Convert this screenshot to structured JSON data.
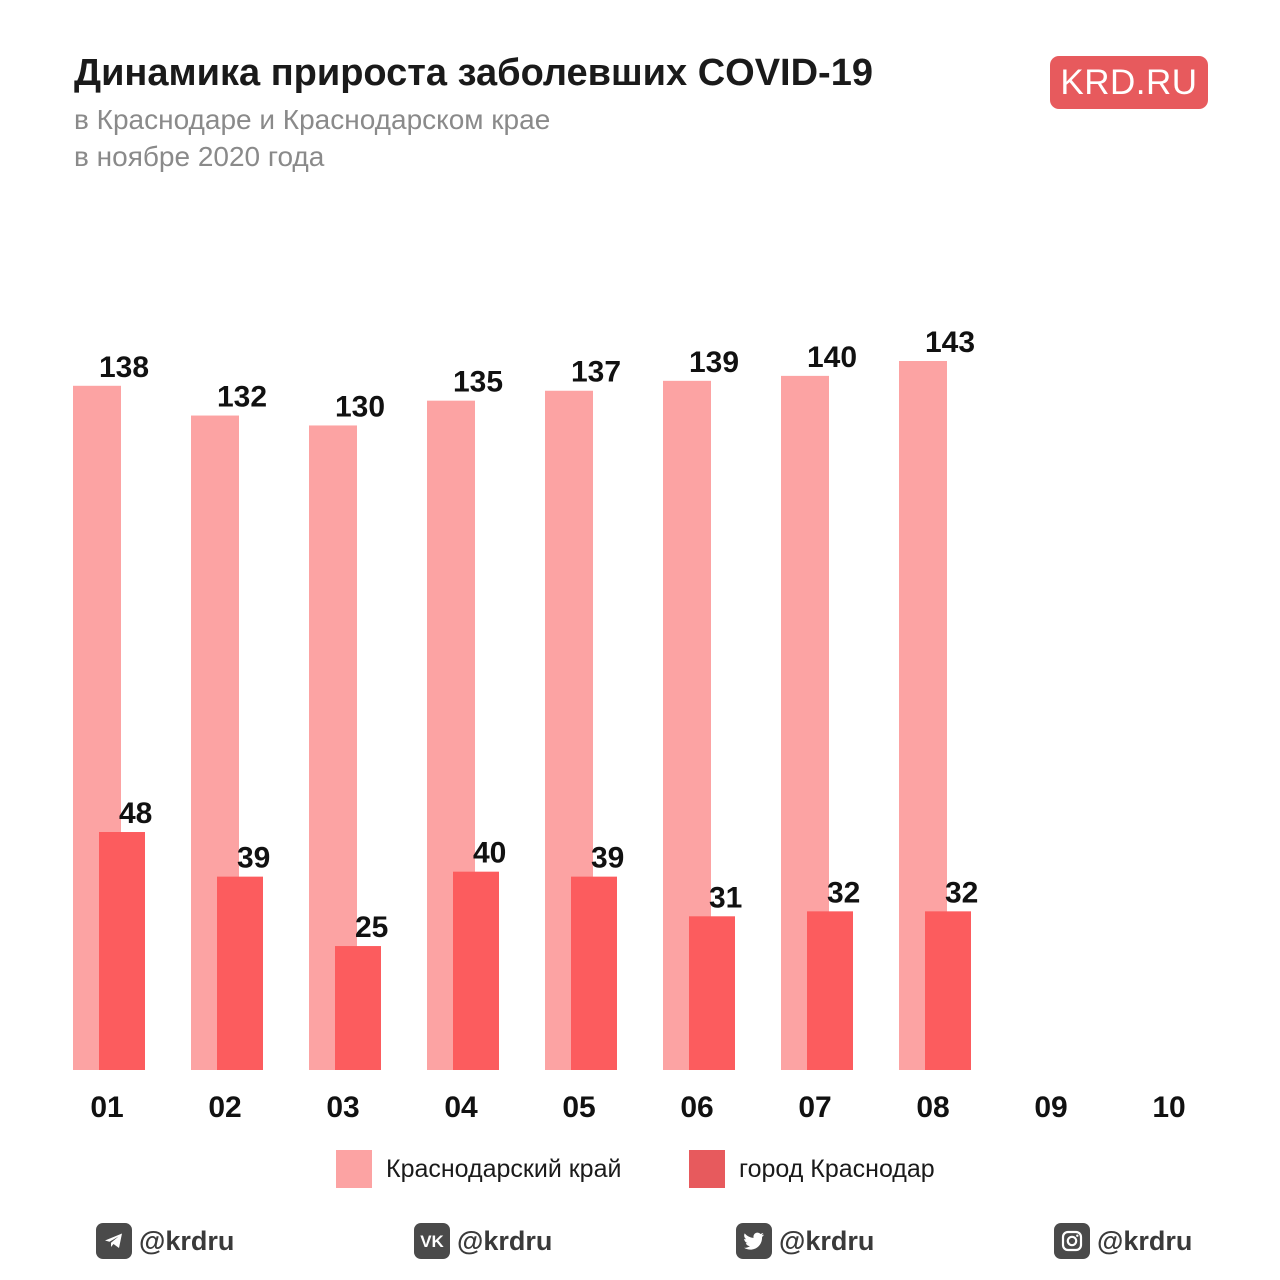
{
  "header": {
    "title": "Динамика прироста заболевших COVID-19",
    "subtitle_line1": "в Краснодаре и Краснодарском крае",
    "subtitle_line2": "в ноябре 2020 года",
    "brand": "KRD.RU"
  },
  "colors": {
    "region": "#fca3a3",
    "city": "#fc5c5e",
    "brand": "#e75a5d",
    "text": "#1a1a1a",
    "subtitle": "#8a8a8a",
    "icon": "#4a4a4a"
  },
  "chart_data": {
    "type": "bar",
    "categories": [
      "01",
      "02",
      "03",
      "04",
      "05",
      "06",
      "07",
      "08",
      "09",
      "10"
    ],
    "series": [
      {
        "name": "Краснодарский край",
        "values": [
          138,
          132,
          130,
          135,
          137,
          139,
          140,
          143,
          null,
          null
        ]
      },
      {
        "name": "город Краснодар",
        "values": [
          48,
          39,
          25,
          40,
          39,
          31,
          32,
          32,
          null,
          null
        ]
      }
    ],
    "ylim": [
      0,
      143
    ],
    "grid": false,
    "legend": "bottom",
    "data_labels": true
  },
  "legend": {
    "region_label": "Краснодарский край",
    "city_label": "город Краснодар"
  },
  "social": [
    {
      "icon": "telegram-icon",
      "handle": "@krdru"
    },
    {
      "icon": "vk-icon",
      "handle": "@krdru"
    },
    {
      "icon": "twitter-icon",
      "handle": "@krdru"
    },
    {
      "icon": "instagram-icon",
      "handle": "@krdru"
    }
  ]
}
